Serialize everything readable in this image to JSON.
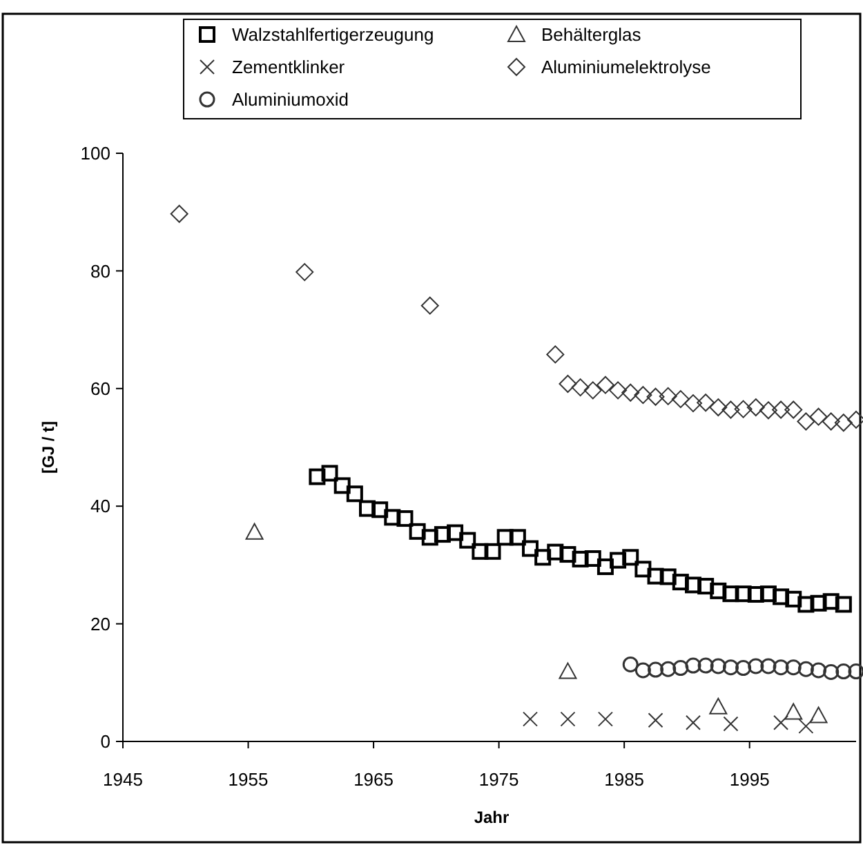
{
  "chart_data": {
    "type": "scatter",
    "xlabel": "Jahr",
    "ylabel": "[GJ / t]",
    "xlim": [
      1945,
      2003.5
    ],
    "xticks": [
      1945,
      1955,
      1965,
      1975,
      1985,
      1995
    ],
    "ylim": [
      0,
      100
    ],
    "yticks": [
      0,
      20,
      40,
      60,
      80,
      100
    ],
    "grid": false,
    "legend": "top",
    "series": [
      {
        "name": "Walzstahlfertigerzeugung",
        "color": "#000000",
        "marker": "square",
        "x": [
          1960.5,
          1961.5,
          1962.5,
          1963.5,
          1964.5,
          1965.5,
          1966.5,
          1967.5,
          1968.5,
          1969.5,
          1970.5,
          1971.5,
          1972.5,
          1973.5,
          1974.5,
          1975.5,
          1976.5,
          1977.5,
          1978.5,
          1979.5,
          1980.5,
          1981.5,
          1982.5,
          1983.5,
          1984.5,
          1985.5,
          1986.5,
          1987.5,
          1988.5,
          1989.5,
          1990.5,
          1991.5,
          1992.5,
          1993.5,
          1994.5,
          1995.5,
          1996.5,
          1997.5,
          1998.5,
          1999.5,
          2000.5,
          2001.5,
          2002.5
        ],
        "values": [
          45.0,
          45.6,
          43.5,
          42.1,
          39.6,
          39.4,
          38.1,
          37.9,
          35.7,
          34.7,
          35.2,
          35.5,
          34.2,
          32.3,
          32.3,
          34.7,
          34.7,
          32.8,
          31.3,
          32.2,
          31.8,
          31.0,
          31.1,
          29.7,
          30.8,
          31.3,
          29.3,
          28.1,
          28.0,
          27.1,
          26.6,
          26.4,
          25.6,
          25.1,
          25.1,
          25.0,
          25.1,
          24.6,
          24.2,
          23.3,
          23.5,
          23.8,
          23.3
        ]
      },
      {
        "name": "Behälterglas",
        "color": "#333333",
        "marker": "triangle",
        "x": [
          1955.5,
          1980.5,
          1992.5,
          1998.5,
          2000.5
        ],
        "values": [
          35.6,
          11.9,
          5.9,
          5.0,
          4.4
        ]
      },
      {
        "name": "Zementklinker",
        "color": "#333333",
        "marker": "cross",
        "x": [
          1977.5,
          1980.5,
          1983.5,
          1987.5,
          1990.5,
          1993.5,
          1997.5,
          1999.5
        ],
        "values": [
          3.8,
          3.8,
          3.8,
          3.6,
          3.2,
          3.0,
          3.2,
          2.6
        ]
      },
      {
        "name": "Aluminiumelektrolyse",
        "color": "#333333",
        "marker": "diamond",
        "x": [
          1949.5,
          1959.5,
          1969.5,
          1979.5,
          1980.5,
          1981.5,
          1982.5,
          1983.5,
          1984.5,
          1985.5,
          1986.5,
          1987.5,
          1988.5,
          1989.5,
          1990.5,
          1991.5,
          1992.5,
          1993.5,
          1994.5,
          1995.5,
          1996.5,
          1997.5,
          1998.5,
          1999.5,
          2000.5,
          2001.5,
          2002.5,
          2003.5
        ],
        "values": [
          89.7,
          79.8,
          74.1,
          65.8,
          60.8,
          60.2,
          59.7,
          60.6,
          59.7,
          59.3,
          58.9,
          58.6,
          58.7,
          58.2,
          57.5,
          57.6,
          56.8,
          56.4,
          56.5,
          56.8,
          56.3,
          56.4,
          56.4,
          54.4,
          55.2,
          54.4,
          54.2,
          54.7
        ]
      },
      {
        "name": "Aluminiumoxid",
        "color": "#333333",
        "marker": "circle",
        "x": [
          1985.5,
          1986.5,
          1987.5,
          1988.5,
          1989.5,
          1990.5,
          1991.5,
          1992.5,
          1993.5,
          1994.5,
          1995.5,
          1996.5,
          1997.5,
          1998.5,
          1999.5,
          2000.5,
          2001.5,
          2002.5,
          2003.5
        ],
        "values": [
          13.1,
          12.1,
          12.2,
          12.3,
          12.5,
          12.9,
          12.9,
          12.8,
          12.6,
          12.5,
          12.8,
          12.8,
          12.6,
          12.6,
          12.3,
          12.1,
          11.8,
          11.9,
          11.9
        ]
      }
    ]
  }
}
